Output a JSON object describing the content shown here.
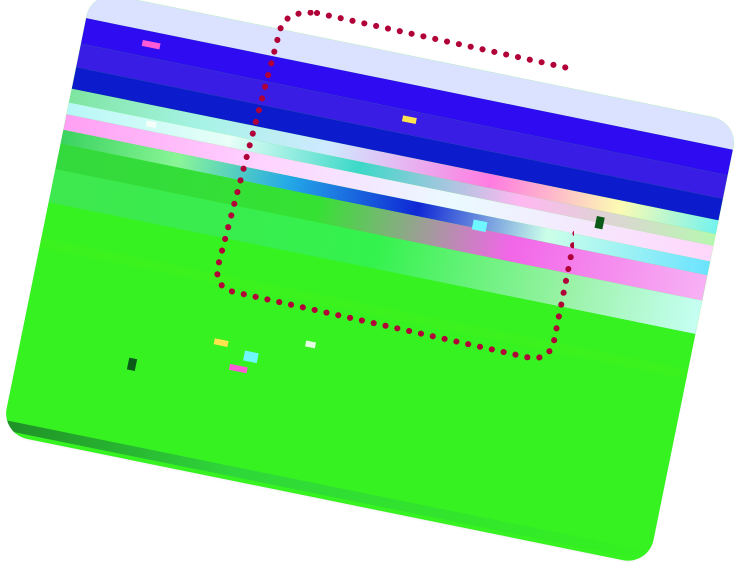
{
  "colors": {
    "card_base": "#33f21e",
    "blue_band": "#2f0bf1",
    "dotted_outline": "#b00037",
    "accent_pink": "#ff5bd6",
    "accent_yellow": "#ffe44d",
    "accent_cyan": "#6ff7ff"
  },
  "icons": {
    "dotted_outline": "dotted-selection-outline",
    "glitch_card": "glitched-image-card"
  }
}
